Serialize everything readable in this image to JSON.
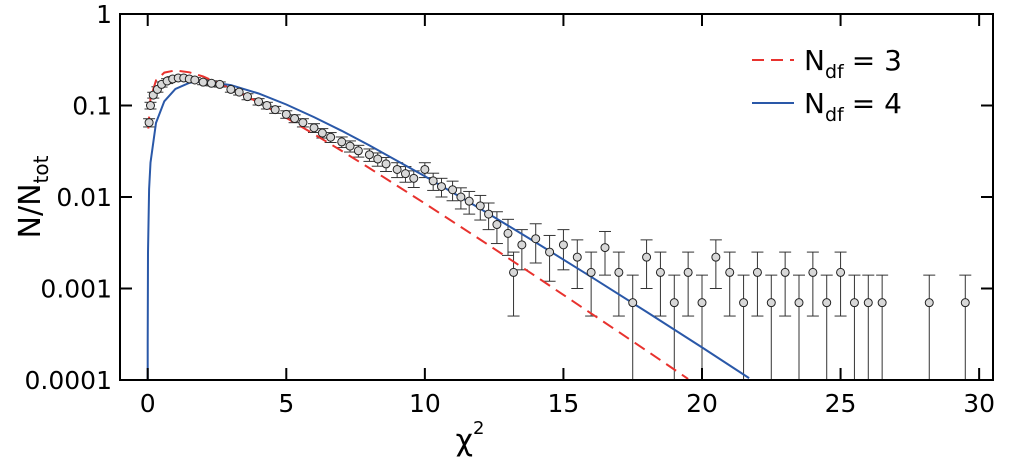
{
  "chart_data": {
    "type": "scatter",
    "xlabel": {
      "text": "χ",
      "sup": "2"
    },
    "ylabel": {
      "text": "N/N",
      "sub": "tot"
    },
    "xlim": [
      -1,
      30.5
    ],
    "ylim": [
      0.0001,
      1
    ],
    "log_y": true,
    "xticks": [
      0,
      5,
      10,
      15,
      20,
      25,
      30
    ],
    "yticks": [
      0.0001,
      0.001,
      0.01,
      0.1,
      1
    ],
    "legend": "upper right",
    "series": [
      {
        "name": "N",
        "name_sub": "df",
        "name_rest": "= 3",
        "color": "#e8322e",
        "style": "dashed",
        "x": [
          0.02,
          0.1,
          0.3,
          0.6,
          1,
          1.5,
          2,
          3,
          4,
          5,
          6,
          7,
          8,
          10,
          12,
          14,
          16,
          18,
          19.5
        ],
        "values": [
          0.0559,
          0.12,
          0.1881,
          0.2289,
          0.242,
          0.2308,
          0.2076,
          0.1542,
          0.108,
          0.0732,
          0.0487,
          0.0319,
          0.02067,
          0.0085,
          0.003426,
          0.001361,
          0.000535,
          0.000209,
          0.0001027
        ]
      },
      {
        "name": "N",
        "name_sub": "df",
        "name_rest": "= 4",
        "color": "#2a58a8",
        "style": "solid",
        "x": [
          0.0004,
          0.001,
          0.01,
          0.05,
          0.1,
          0.3,
          0.6,
          1,
          1.5,
          2,
          3,
          4,
          5,
          6,
          7,
          8,
          10,
          12,
          14,
          16,
          18,
          20,
          21.7
        ],
        "values": [
          0.0001,
          0.00025,
          0.00249,
          0.0122,
          0.02378,
          0.06455,
          0.1111,
          0.1516,
          0.1771,
          0.1839,
          0.1673,
          0.1353,
          0.1026,
          0.0747,
          0.05285,
          0.03663,
          0.01684,
          0.007436,
          0.003192,
          0.001342,
          0.000555,
          0.000227,
          0.000105
        ]
      }
    ],
    "points": {
      "color": "#d8d8d8",
      "x": [
        0.05,
        0.1,
        0.2,
        0.35,
        0.5,
        0.7,
        0.9,
        1.1,
        1.3,
        1.5,
        1.7,
        2.0,
        2.3,
        2.6,
        3.0,
        3.3,
        3.6,
        4.0,
        4.3,
        4.6,
        5.0,
        5.3,
        5.6,
        6.0,
        6.3,
        6.6,
        7.0,
        7.3,
        7.6,
        8.0,
        8.3,
        8.6,
        9.0,
        9.3,
        9.6,
        10.0,
        10.3,
        10.6,
        11.0,
        11.3,
        11.6,
        12.0,
        12.3,
        12.6,
        13.0,
        13.2,
        13.5,
        14.0,
        14.5,
        15.0,
        15.5,
        16.0,
        16.5,
        17.0,
        17.5,
        18.0,
        18.5,
        19.0,
        19.5,
        20.0,
        20.5,
        21.0,
        21.5,
        22.0,
        22.5,
        23.0,
        23.5,
        24.0,
        24.5,
        25.0,
        25.5,
        26.0,
        26.5,
        28.2,
        29.5
      ],
      "values": [
        0.065,
        0.1,
        0.13,
        0.15,
        0.17,
        0.185,
        0.195,
        0.2,
        0.2,
        0.195,
        0.19,
        0.18,
        0.175,
        0.17,
        0.15,
        0.14,
        0.125,
        0.11,
        0.1,
        0.09,
        0.08,
        0.072,
        0.065,
        0.057,
        0.05,
        0.045,
        0.04,
        0.036,
        0.032,
        0.029,
        0.026,
        0.023,
        0.02,
        0.018,
        0.016,
        0.02,
        0.015,
        0.013,
        0.012,
        0.01,
        0.009,
        0.008,
        0.0065,
        0.005,
        0.004,
        0.0015,
        0.003,
        0.0035,
        0.0025,
        0.003,
        0.0022,
        0.0015,
        0.0028,
        0.0015,
        0.0007,
        0.0022,
        0.0015,
        0.0007,
        0.0015,
        0.0007,
        0.0022,
        0.0015,
        0.0007,
        0.0015,
        0.0007,
        0.0015,
        0.0007,
        0.0015,
        0.0007,
        0.0015,
        0.0007,
        0.0007,
        0.0007,
        0.0007,
        0.0007
      ],
      "errors": [
        0.0067,
        0.0084,
        0.0095,
        0.0102,
        0.0109,
        0.0114,
        0.0117,
        0.0118,
        0.0118,
        0.0117,
        0.0115,
        0.0112,
        0.0111,
        0.0109,
        0.0102,
        0.0099,
        0.0094,
        0.0088,
        0.0084,
        0.0079,
        0.0075,
        0.0071,
        0.0067,
        0.0063,
        0.0059,
        0.0056,
        0.0053,
        0.005,
        0.0047,
        0.0045,
        0.0043,
        0.004,
        0.0037,
        0.0035,
        0.0033,
        0.0037,
        0.0032,
        0.003,
        0.0029,
        0.0026,
        0.0025,
        0.0024,
        0.0021,
        0.0019,
        0.0017,
        0.001,
        0.0014,
        0.0016,
        0.0013,
        0.0014,
        0.0012,
        0.001,
        0.0014,
        0.001,
        0.0007,
        0.0012,
        0.001,
        0.0007,
        0.001,
        0.0007,
        0.0012,
        0.001,
        0.0007,
        0.001,
        0.0007,
        0.001,
        0.0007,
        0.001,
        0.0007,
        0.001,
        0.0007,
        0.0007,
        0.0007,
        0.0007,
        0.0007
      ]
    }
  }
}
